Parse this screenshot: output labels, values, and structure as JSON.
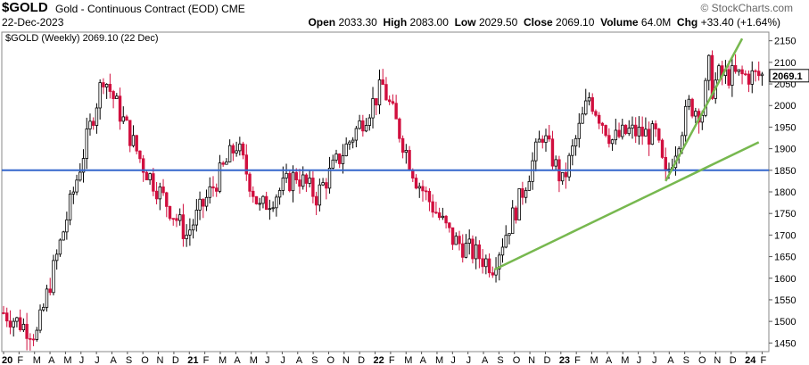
{
  "header": {
    "ticker": "$GOLD",
    "name": "Gold - Continuous Contract (EOD)",
    "exchange": "CME",
    "date": "22-Dec-2023",
    "brand": "© StockCharts.com",
    "open_label": "Open",
    "open": "2033.30",
    "high_label": "High",
    "high": "2083.00",
    "low_label": "Low",
    "low": "2029.50",
    "close_label": "Close",
    "close": "2069.10",
    "volume_label": "Volume",
    "volume": "64.0M",
    "chg_label": "Chg",
    "chg": "+33.40 (+1.64%)"
  },
  "chart_data": {
    "type": "candlestick",
    "title": "$GOLD (Weekly) 2069.10 (22 Dec)",
    "last_price_label": "2069.1",
    "colors": {
      "up": "#000000",
      "down": "#d10f3e",
      "support": "#3366cc",
      "trend": "#77b84f"
    },
    "y_ticks": [
      1450,
      1500,
      1550,
      1600,
      1650,
      1700,
      1750,
      1800,
      1850,
      1900,
      1950,
      2000,
      2050,
      2100,
      2150
    ],
    "ylim": [
      1430,
      2170
    ],
    "x_ticks": [
      "20",
      "F",
      "M",
      "A",
      "M",
      "J",
      "J",
      "A",
      "S",
      "O",
      "N",
      "D",
      "21",
      "F",
      "M",
      "A",
      "M",
      "J",
      "J",
      "A",
      "S",
      "O",
      "N",
      "D",
      "22",
      "F",
      "M",
      "A",
      "M",
      "J",
      "J",
      "A",
      "S",
      "O",
      "N",
      "D",
      "23",
      "F",
      "M",
      "A",
      "M",
      "J",
      "J",
      "A",
      "S",
      "O",
      "N",
      "D",
      "24",
      "F"
    ],
    "horizontal_line": {
      "y": 1850
    },
    "trendlines": [
      {
        "x1": 147.5,
        "y1": 1620,
        "x2": 227,
        "y2": 1915
      },
      {
        "x1": 199,
        "y1": 1825,
        "x2": 222,
        "y2": 2155
      }
    ],
    "key_points": [
      {
        "x": 0,
        "y": 1520
      },
      {
        "x": 10,
        "y": 1470
      },
      {
        "x": 30,
        "y": 2070
      },
      {
        "x": 42,
        "y": 1860
      },
      {
        "x": 55,
        "y": 1700
      },
      {
        "x": 70,
        "y": 1910
      },
      {
        "x": 77,
        "y": 1760
      },
      {
        "x": 88,
        "y": 1840
      },
      {
        "x": 94,
        "y": 1790
      },
      {
        "x": 114,
        "y": 2045
      },
      {
        "x": 124,
        "y": 1830
      },
      {
        "x": 135,
        "y": 1690
      },
      {
        "x": 147,
        "y": 1630
      },
      {
        "x": 155,
        "y": 1780
      },
      {
        "x": 162,
        "y": 1935
      },
      {
        "x": 168,
        "y": 1820
      },
      {
        "x": 176,
        "y": 2020
      },
      {
        "x": 183,
        "y": 1920
      },
      {
        "x": 188,
        "y": 1940
      },
      {
        "x": 196,
        "y": 1930
      },
      {
        "x": 199,
        "y": 1830
      },
      {
        "x": 206,
        "y": 2000
      },
      {
        "x": 210,
        "y": 1985
      },
      {
        "x": 212,
        "y": 2090
      },
      {
        "x": 213,
        "y": 2040
      },
      {
        "x": 215,
        "y": 2069
      }
    ]
  }
}
